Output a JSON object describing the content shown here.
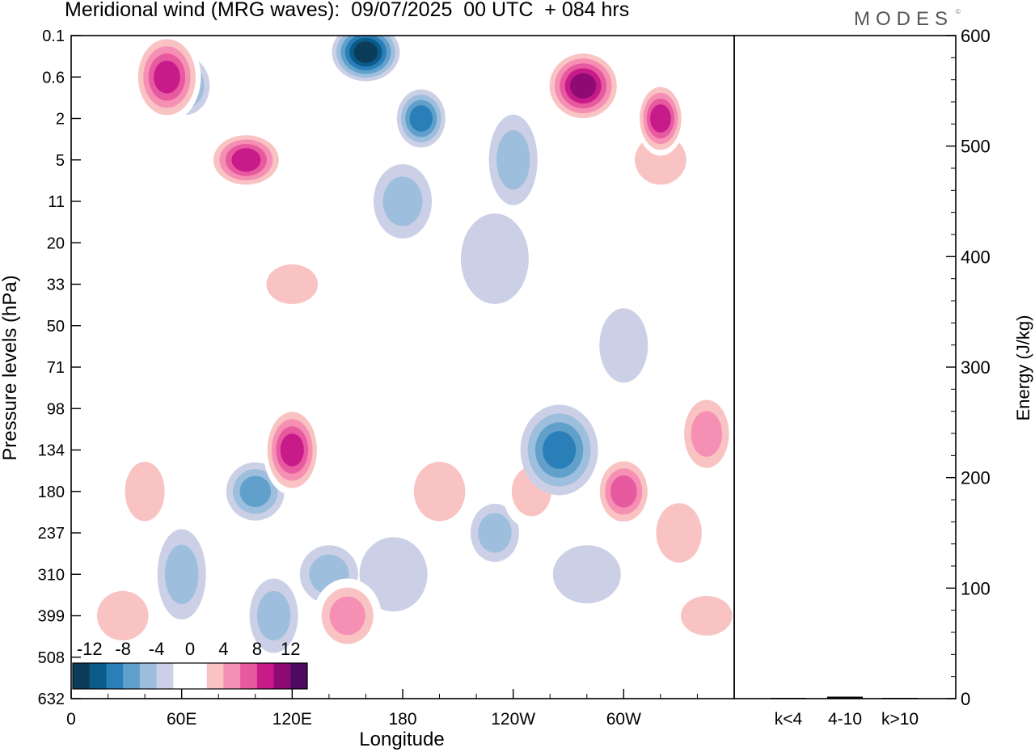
{
  "title": "Meridional wind (MRG waves):  09/07/2025  00 UTC  + 084 hrs",
  "logo": "MODES",
  "chart_data": [
    {
      "type": "heatmap",
      "xlabel": "Longitude",
      "ylabel": "Pressure levels (hPa)",
      "x_ticks": [
        "0",
        "60E",
        "120E",
        "180",
        "120W",
        "60W"
      ],
      "x_tick_degrees": [
        0,
        60,
        120,
        180,
        240,
        300
      ],
      "xlim": [
        0,
        360
      ],
      "y_ticks": [
        "0.1",
        "0.6",
        "2",
        "5",
        "11",
        "20",
        "33",
        "50",
        "71",
        "98",
        "134",
        "180",
        "237",
        "310",
        "399",
        "508",
        "632"
      ],
      "colorbar": {
        "levels": [
          -14,
          -12,
          -10,
          -8,
          -6,
          -4,
          -2,
          2,
          4,
          6,
          8,
          10,
          12,
          14
        ],
        "tick_labels": [
          "-12",
          "-8",
          "-4",
          "0",
          "4",
          "8",
          "12"
        ],
        "colors": [
          "#0b3d5b",
          "#0a5a8a",
          "#2b7fb8",
          "#62a0cc",
          "#9dbfdd",
          "#ccd0e6",
          "#ffffff",
          "#ffffff",
          "#f9c3c3",
          "#f58fb3",
          "#e75a9f",
          "#c81b8a",
          "#8f0b74",
          "#4d0a5e"
        ]
      },
      "features": [
        {
          "lon": 52,
          "lev": 0.6,
          "value": 10
        },
        {
          "lon": 95,
          "lev": 5,
          "value": 10
        },
        {
          "lon": 160,
          "lev": 0.3,
          "value": -13
        },
        {
          "lon": 190,
          "lev": 2,
          "value": -9
        },
        {
          "lon": 278,
          "lev": 0.9,
          "value": 13
        },
        {
          "lon": 320,
          "lev": 2,
          "value": 10
        },
        {
          "lon": 120,
          "lev": 134,
          "value": 10
        },
        {
          "lon": 300,
          "lev": 180,
          "value": 9
        },
        {
          "lon": 265,
          "lev": 134,
          "value": -8
        },
        {
          "lon": 100,
          "lev": 180,
          "value": -6
        },
        {
          "lon": 150,
          "lev": 399,
          "value": 6
        }
      ]
    },
    {
      "type": "bar",
      "categories": [
        "k<4",
        "4-10",
        "k>10"
      ],
      "values": [
        0.4,
        1.8,
        0.2
      ],
      "ylabel": "Energy (J/kg)",
      "ylim": [
        0,
        600
      ],
      "y_ticks": [
        0,
        100,
        200,
        300,
        400,
        500,
        600
      ]
    }
  ]
}
